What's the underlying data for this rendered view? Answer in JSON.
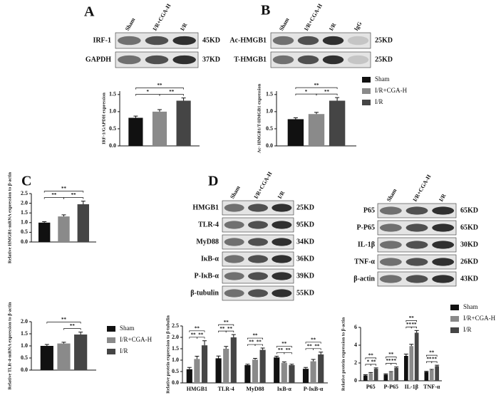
{
  "panel_letters": [
    "A",
    "B",
    "C",
    "D"
  ],
  "blots": [
    {
      "columns": [
        "Sham",
        "I/R+CGA-H",
        "I/R"
      ],
      "rows": [
        {
          "label": "IRF-1",
          "size": "45KD"
        },
        {
          "label": "GAPDH",
          "size": "37KD"
        }
      ]
    },
    {
      "columns": [
        "Sham",
        "I/R+CGA-H",
        "I/R",
        "IgG"
      ],
      "rows": [
        {
          "label": "Ac-HMGB1",
          "size": "25KD"
        },
        {
          "label": "T-HMGB1",
          "size": "25KD"
        }
      ]
    },
    {
      "columns": [
        "Sham",
        "I/R+CGA-H",
        "I/R"
      ],
      "rows": [
        {
          "label": "HMGB1",
          "size": "25KD"
        },
        {
          "label": "TLR-4",
          "size": "95KD"
        },
        {
          "label": "MyD88",
          "size": "34KD"
        },
        {
          "label": "IκB-α",
          "size": "36KD"
        },
        {
          "label": "P-IκB-α",
          "size": "39KD"
        },
        {
          "label": "β-tubulin",
          "size": "55KD"
        }
      ]
    },
    {
      "columns": [
        "Sham",
        "I/R+CGA-H",
        "I/R"
      ],
      "rows": [
        {
          "label": "P65",
          "size": "65KD"
        },
        {
          "label": "P-P65",
          "size": "65KD"
        },
        {
          "label": "IL-1β",
          "size": "30KD"
        },
        {
          "label": "TNF-α",
          "size": "26KD"
        },
        {
          "label": "β-actin",
          "size": "43KD"
        }
      ]
    }
  ],
  "chart_data": [
    {
      "type": "bar",
      "y_label": "IRF-1/GAPDH expression",
      "values": [
        0.82,
        1.0,
        1.32
      ],
      "errors": [
        0.05,
        0.06,
        0.08
      ],
      "colors": [
        "#111111",
        "#8a8a8a",
        "#454545"
      ],
      "ylim": [
        0,
        1.6
      ],
      "yticks": [
        {
          "value": 0,
          "label": "0.0"
        },
        {
          "value": 0.5,
          "label": "0.5"
        },
        {
          "value": 1,
          "label": "1.0"
        },
        {
          "value": 1.5,
          "label": "1.5"
        }
      ],
      "brackets": {
        "0-1": "*",
        "1-2": "**",
        "0-2": "**"
      }
    },
    {
      "type": "bar",
      "y_label": "Ac- HMGB1/T-HMGB1 expression",
      "series": [
        {
          "name": "Sham",
          "color": "#111111",
          "values": [
            0.78
          ],
          "errors": [
            0.04
          ]
        },
        {
          "name": "I/R+CGA-H",
          "color": "#8a8a8a",
          "values": [
            0.93
          ],
          "errors": [
            0.05
          ]
        },
        {
          "name": "I/R",
          "color": "#454545",
          "values": [
            1.32
          ],
          "errors": [
            0.09
          ]
        }
      ],
      "ylim": [
        0,
        1.6
      ],
      "yticks": [
        {
          "value": 0,
          "label": "0.0"
        },
        {
          "value": 0.5,
          "label": "0.5"
        },
        {
          "value": 1,
          "label": "1.0"
        },
        {
          "value": 1.5,
          "label": "1.5"
        }
      ],
      "brackets": [
        {
          "0-1": "*",
          "1-2": "**",
          "0-2": "**"
        }
      ]
    },
    {
      "type": "bar",
      "y_label": "Relative HMGB1-mRNA expression to β-actin",
      "values": [
        1.0,
        1.32,
        1.95
      ],
      "errors": [
        0.05,
        0.08,
        0.16
      ],
      "colors": [
        "#111111",
        "#8a8a8a",
        "#454545"
      ],
      "ylim": [
        0,
        2.5
      ],
      "yticks": [
        {
          "value": 0,
          "label": "0.0"
        },
        {
          "value": 0.5,
          "label": "0.5"
        },
        {
          "value": 1,
          "label": "1.0"
        },
        {
          "value": 1.5,
          "label": "1.5"
        },
        {
          "value": 2,
          "label": "2.0"
        },
        {
          "value": 2.5,
          "label": "2.5"
        }
      ],
      "brackets": {
        "0-1": "**",
        "1-2": "**",
        "0-2": "**"
      }
    },
    {
      "type": "bar",
      "y_label": "Relative TLR-4-mRNA expression to β-actin",
      "series": [
        {
          "name": "Sham",
          "color": "#111111",
          "values": [
            1.0
          ],
          "errors": [
            0.06
          ]
        },
        {
          "name": "I/R+CGA-H",
          "color": "#8a8a8a",
          "values": [
            1.1
          ],
          "errors": [
            0.05
          ]
        },
        {
          "name": "I/R",
          "color": "#454545",
          "values": [
            1.47
          ],
          "errors": [
            0.1
          ]
        }
      ],
      "ylim": [
        0,
        2.0
      ],
      "yticks": [
        {
          "value": 0,
          "label": "0.0"
        },
        {
          "value": 0.5,
          "label": "0.5"
        },
        {
          "value": 1,
          "label": "1.0"
        },
        {
          "value": 1.5,
          "label": "1.5"
        },
        {
          "value": 2,
          "label": "2.0"
        }
      ],
      "brackets": [
        {
          "1-2": "**",
          "0-2": "**"
        }
      ]
    },
    {
      "type": "bar",
      "y_label": "Relative protein expression to β-tubulin",
      "categories": [
        "HMGB1",
        "TLR-4",
        "MyD88",
        "IκB-α",
        "P-IκB-α"
      ],
      "series": [
        {
          "name": "Sham",
          "color": "#111111",
          "values": [
            0.6,
            1.08,
            0.78,
            1.12,
            0.62
          ],
          "errors": [
            0.08,
            0.1,
            0.04,
            0.05,
            0.06
          ]
        },
        {
          "name": "I/R+CGA-H",
          "color": "#8a8a8a",
          "values": [
            1.05,
            1.5,
            1.02,
            0.88,
            0.95
          ],
          "errors": [
            0.12,
            0.1,
            0.06,
            0.04,
            0.08
          ]
        },
        {
          "name": "I/R",
          "color": "#454545",
          "values": [
            1.65,
            2.0,
            1.45,
            0.78,
            1.25
          ],
          "errors": [
            0.2,
            0.12,
            0.08,
            0.04,
            0.1
          ]
        }
      ],
      "ylim": [
        0,
        2.5
      ],
      "yticks": [
        {
          "value": 0,
          "label": "0.0"
        },
        {
          "value": 0.5,
          "label": "0.5"
        },
        {
          "value": 1,
          "label": "1.0"
        },
        {
          "value": 1.5,
          "label": "1.5"
        },
        {
          "value": 2,
          "label": "2.0"
        },
        {
          "value": 2.5,
          "label": "2.5"
        }
      ],
      "brackets": [
        {
          "0-1": "**",
          "1-2": "**",
          "0-2": "**"
        },
        {
          "0-1": "**",
          "1-2": "**",
          "0-2": "**"
        },
        {
          "0-1": "**",
          "1-2": "**",
          "0-2": "**"
        },
        {
          "0-1": "**",
          "1-2": "**",
          "0-2": "**"
        },
        {
          "0-1": "**",
          "1-2": "**",
          "0-2": "**"
        }
      ]
    },
    {
      "type": "bar",
      "y_label": "Relative protein expression to β-actin",
      "categories": [
        "P65",
        "P-P65",
        "IL-1β",
        "TNF-α"
      ],
      "series": [
        {
          "name": "Sham",
          "color": "#111111",
          "values": [
            0.6,
            0.7,
            2.8,
            1.0
          ],
          "errors": [
            0.08,
            0.08,
            0.2,
            0.06
          ]
        },
        {
          "name": "I/R+CGA-H",
          "color": "#8a8a8a",
          "values": [
            0.85,
            0.95,
            3.9,
            1.2
          ],
          "errors": [
            0.08,
            0.08,
            0.2,
            0.08
          ]
        },
        {
          "name": "I/R",
          "color": "#454545",
          "values": [
            1.35,
            1.45,
            5.4,
            1.65
          ],
          "errors": [
            0.1,
            0.1,
            0.25,
            0.1
          ]
        }
      ],
      "ylim": [
        0,
        6
      ],
      "yticks": [
        0,
        2,
        4,
        6
      ],
      "brackets": [
        {
          "0-1": "*",
          "1-2": "**",
          "0-2": "**"
        },
        {
          "0-1": "**",
          "1-2": "**",
          "0-2": "**"
        },
        {
          "0-1": "**",
          "1-2": "**",
          "0-2": "**"
        },
        {
          "0-1": "**",
          "1-2": "**",
          "0-2": "**"
        }
      ]
    }
  ]
}
